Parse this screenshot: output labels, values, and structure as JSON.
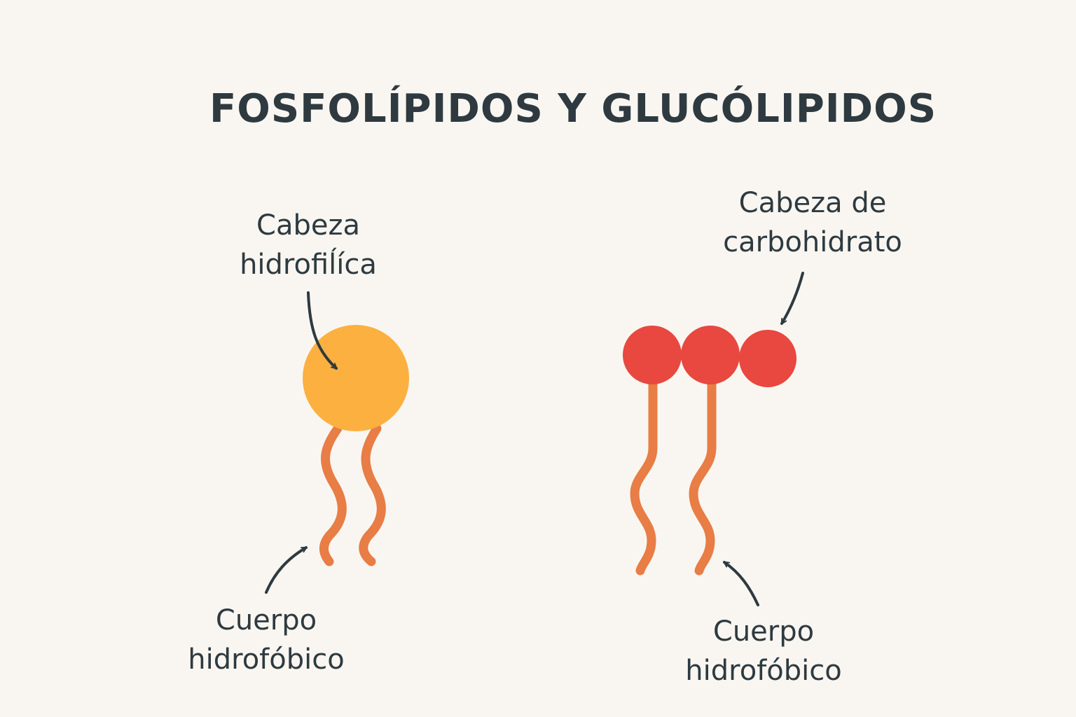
{
  "title": "FOSFOLÍPIDOS Y GLUCÓLIPIDOS",
  "phospholipid": {
    "head_label": [
      "Cabeza",
      "hidrofiĺíca"
    ],
    "tail_label": [
      "Cuerpo",
      "hidrofóbico"
    ]
  },
  "glycolipid": {
    "head_label": [
      "Cabeza de",
      "carbohidrato"
    ],
    "tail_label": [
      "Cuerpo",
      "hidrofóbico"
    ]
  },
  "colors": {
    "background": "#f9f6f1",
    "text": "#2e3a40",
    "phospholipid_head": "#fbb040",
    "glycolipid_head": "#e8483f",
    "tail": "#e87d45"
  }
}
